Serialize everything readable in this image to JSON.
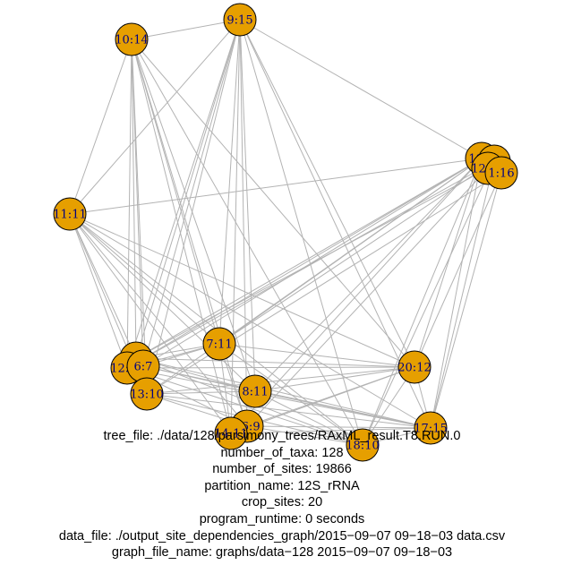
{
  "graph": {
    "node_color": "#e69f00",
    "edge_color": "#b3b3b3",
    "label_color": "#000080",
    "nodes": [
      {
        "id": "10:14",
        "label": "10:14"
      },
      {
        "id": "9:15",
        "label": "9:15"
      },
      {
        "id": "19:8",
        "label": "19:8"
      },
      {
        "id": "18:7",
        "label": "18:7"
      },
      {
        "id": "12:12",
        "label": "12:12"
      },
      {
        "id": "1:16",
        "label": "1:16"
      },
      {
        "id": "11:11",
        "label": "11:11"
      },
      {
        "id": "5:10",
        "label": "5:10"
      },
      {
        "id": "12:10",
        "label": "12:10"
      },
      {
        "id": "6:7",
        "label": "6:7"
      },
      {
        "id": "13:10",
        "label": "13:10"
      },
      {
        "id": "7:11",
        "label": "7:11"
      },
      {
        "id": "8:11",
        "label": "8:11"
      },
      {
        "id": "20:12",
        "label": "20:12"
      },
      {
        "id": "16:9",
        "label": "16:9"
      },
      {
        "id": "14:11",
        "label": "14:11"
      },
      {
        "id": "18:10",
        "label": "18:10"
      },
      {
        "id": "17:15",
        "label": "17:15"
      }
    ],
    "edges": [
      [
        "10:14",
        "11:11"
      ],
      [
        "10:14",
        "9:15"
      ],
      [
        "10:14",
        "5:10"
      ],
      [
        "10:14",
        "12:10"
      ],
      [
        "10:14",
        "6:7"
      ],
      [
        "10:14",
        "13:10"
      ],
      [
        "10:14",
        "7:11"
      ],
      [
        "10:14",
        "8:11"
      ],
      [
        "10:14",
        "16:9"
      ],
      [
        "10:14",
        "14:11"
      ],
      [
        "10:14",
        "20:12"
      ],
      [
        "10:14",
        "18:10"
      ],
      [
        "9:15",
        "11:11"
      ],
      [
        "9:15",
        "19:8"
      ],
      [
        "9:15",
        "5:10"
      ],
      [
        "9:15",
        "12:10"
      ],
      [
        "9:15",
        "13:10"
      ],
      [
        "9:15",
        "7:11"
      ],
      [
        "9:15",
        "8:11"
      ],
      [
        "9:15",
        "16:9"
      ],
      [
        "9:15",
        "14:11"
      ],
      [
        "9:15",
        "20:12"
      ],
      [
        "9:15",
        "18:10"
      ],
      [
        "9:15",
        "17:15"
      ],
      [
        "9:15",
        "6:7"
      ],
      [
        "19:8",
        "11:11"
      ],
      [
        "19:8",
        "5:10"
      ],
      [
        "19:8",
        "12:10"
      ],
      [
        "19:8",
        "6:7"
      ],
      [
        "19:8",
        "13:10"
      ],
      [
        "19:8",
        "7:11"
      ],
      [
        "19:8",
        "8:11"
      ],
      [
        "19:8",
        "20:12"
      ],
      [
        "19:8",
        "18:10"
      ],
      [
        "19:8",
        "17:15"
      ],
      [
        "19:8",
        "14:11"
      ],
      [
        "18:7",
        "12:10"
      ],
      [
        "18:7",
        "7:11"
      ],
      [
        "18:7",
        "18:10"
      ],
      [
        "18:7",
        "17:15"
      ],
      [
        "12:12",
        "5:10"
      ],
      [
        "12:12",
        "16:9"
      ],
      [
        "1:16",
        "20:12"
      ],
      [
        "1:16",
        "13:10"
      ],
      [
        "1:16",
        "17:15"
      ],
      [
        "11:11",
        "5:10"
      ],
      [
        "11:11",
        "12:10"
      ],
      [
        "11:11",
        "13:10"
      ],
      [
        "11:11",
        "8:11"
      ],
      [
        "11:11",
        "16:9"
      ],
      [
        "11:11",
        "14:11"
      ],
      [
        "11:11",
        "20:12"
      ],
      [
        "11:11",
        "18:10"
      ],
      [
        "11:11",
        "17:15"
      ],
      [
        "11:11",
        "7:11"
      ],
      [
        "5:10",
        "20:12"
      ],
      [
        "5:10",
        "17:15"
      ],
      [
        "5:10",
        "18:10"
      ],
      [
        "5:10",
        "8:11"
      ],
      [
        "12:10",
        "20:12"
      ],
      [
        "12:10",
        "17:15"
      ],
      [
        "12:10",
        "18:10"
      ],
      [
        "12:10",
        "16:9"
      ],
      [
        "6:7",
        "17:15"
      ],
      [
        "6:7",
        "8:11"
      ],
      [
        "13:10",
        "17:15"
      ],
      [
        "13:10",
        "18:10"
      ],
      [
        "13:10",
        "20:12"
      ],
      [
        "13:10",
        "16:9"
      ],
      [
        "7:11",
        "20:12"
      ],
      [
        "7:11",
        "16:9"
      ],
      [
        "7:11",
        "14:11"
      ],
      [
        "7:11",
        "18:10"
      ],
      [
        "8:11",
        "17:15"
      ],
      [
        "8:11",
        "20:12"
      ],
      [
        "8:11",
        "18:10"
      ],
      [
        "16:9",
        "17:15"
      ],
      [
        "16:9",
        "20:12"
      ],
      [
        "16:9",
        "18:10"
      ],
      [
        "14:11",
        "17:15"
      ],
      [
        "14:11",
        "20:12"
      ],
      [
        "20:12",
        "17:15"
      ],
      [
        "20:12",
        "18:10"
      ],
      [
        "18:10",
        "17:15"
      ],
      [
        "5:10",
        "7:11"
      ],
      [
        "12:10",
        "7:11"
      ],
      [
        "13:10",
        "8:11"
      ],
      [
        "6:7",
        "7:11"
      ]
    ]
  },
  "caption": {
    "tree_file": "tree_file: ./data/128/parsimony_trees/RAxML_result.T8.RUN.0",
    "number_of_taxa": "number_of_taxa: 128",
    "number_of_sites": "number_of_sites: 19866",
    "partition_name": "partition_name: 12S_rRNA",
    "crop_sites": "crop_sites: 20",
    "program_runtime": "program_runtime: 0 seconds",
    "data_file": "data_file: ./output_site_dependencies_graph/2015−09−07 09−18−03 data.csv",
    "graph_file_name": "graph_file_name: graphs/data−128 2015−09−07 09−18−03"
  }
}
